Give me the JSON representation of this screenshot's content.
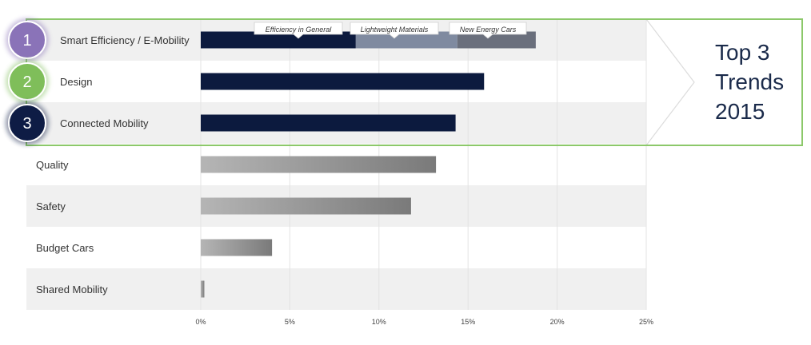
{
  "chart_data": {
    "type": "bar",
    "orientation": "horizontal",
    "categories": [
      "Smart Efficiency / E-Mobility",
      "Design",
      "Connected Mobility",
      "Quality",
      "Safety",
      "Budget Cars",
      "Shared Mobility"
    ],
    "values": [
      18.8,
      15.9,
      14.3,
      13.2,
      11.8,
      4.0,
      0.2
    ],
    "stacked_segments": [
      {
        "category": "Smart Efficiency / E-Mobility",
        "name": "Efficiency in General",
        "value": 8.7
      },
      {
        "category": "Smart Efficiency / E-Mobility",
        "name": "Lightweight Materials",
        "value": 5.7
      },
      {
        "category": "Smart Efficiency / E-Mobility",
        "name": "New Energy Cars",
        "value": 4.4
      }
    ],
    "x_ticks": [
      "0%",
      "5%",
      "10%",
      "15%",
      "20%",
      "25%"
    ],
    "xlim": [
      0,
      25
    ],
    "grid": "vertical",
    "highlight": {
      "ranks": [
        "1",
        "2",
        "3"
      ],
      "title_lines": [
        "Top 3",
        "Trends",
        "2015"
      ]
    },
    "colors": {
      "top_bar": "#0c1a3e",
      "segment_2": "#7f8aa0",
      "segment_3": "#6a6f7c",
      "gray_bar_start": "#b5b5b5",
      "gray_bar_end": "#7a7a7a",
      "band": "#f0f0f0",
      "highlight_border": "#8cc86a",
      "badge_1": "#8a73b8",
      "badge_2": "#7fbe5a",
      "badge_3": "#0e1c45"
    }
  }
}
